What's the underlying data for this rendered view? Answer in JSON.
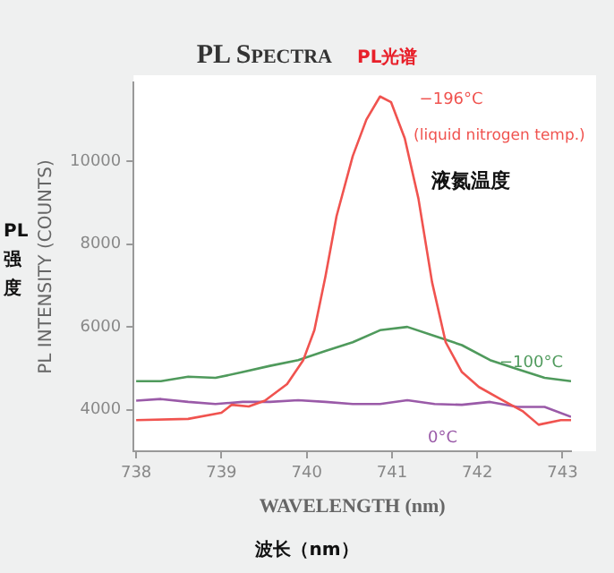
{
  "chart_data": {
    "type": "line",
    "title": "PL Spectra",
    "subtitle": "PL光谱",
    "xlabel": "WAVELENGTH (nm)",
    "ylabel": "PL INTENSITY (COUNTS)",
    "annotations": [
      "(liquid nitrogen temp.)",
      "液氮温度",
      "PL强度",
      "波长（nm）"
    ],
    "xlim": [
      737.97,
      743.1
    ],
    "xticks": [
      738,
      739,
      740,
      741,
      742,
      743
    ],
    "ylim": [
      3000,
      11900
    ],
    "yticks": [
      4000,
      6000,
      8000,
      10000
    ],
    "grid": false,
    "legend": false,
    "marker": "none",
    "line_style": "solid",
    "series": [
      {
        "name": "−196°C",
        "color": "#f0534f",
        "x": [
          738.0,
          738.61,
          739.0,
          739.12,
          739.32,
          739.51,
          739.77,
          739.96,
          740.09,
          740.22,
          740.35,
          740.54,
          740.7,
          740.86,
          740.99,
          741.15,
          741.31,
          741.47,
          741.63,
          741.82,
          742.02,
          742.27,
          742.53,
          742.72,
          742.98,
          743.1
        ],
        "values": [
          3750,
          3780,
          3930,
          4120,
          4080,
          4220,
          4620,
          5200,
          5920,
          7220,
          8670,
          10120,
          11000,
          11560,
          11420,
          10550,
          9100,
          7080,
          5630,
          4910,
          4550,
          4260,
          3970,
          3640,
          3750,
          3750
        ]
      },
      {
        "name": "−100°C",
        "color": "#4f9a5c",
        "x": [
          738.0,
          738.29,
          738.61,
          738.93,
          739.25,
          739.57,
          739.9,
          740.22,
          740.54,
          740.86,
          741.18,
          741.5,
          741.82,
          742.15,
          742.47,
          742.79,
          743.1
        ],
        "values": [
          4690,
          4690,
          4800,
          4770,
          4910,
          5060,
          5200,
          5420,
          5630,
          5920,
          6000,
          5780,
          5560,
          5200,
          4980,
          4770,
          4690
        ]
      },
      {
        "name": "0°C",
        "color": "#9a5aa8",
        "x": [
          738.0,
          738.29,
          738.61,
          738.93,
          739.25,
          739.57,
          739.9,
          740.22,
          740.54,
          740.86,
          741.18,
          741.5,
          741.82,
          742.15,
          742.47,
          742.79,
          743.1
        ],
        "values": [
          4220,
          4260,
          4190,
          4140,
          4190,
          4190,
          4230,
          4190,
          4140,
          4140,
          4230,
          4140,
          4120,
          4190,
          4070,
          4070,
          3830
        ]
      }
    ]
  }
}
